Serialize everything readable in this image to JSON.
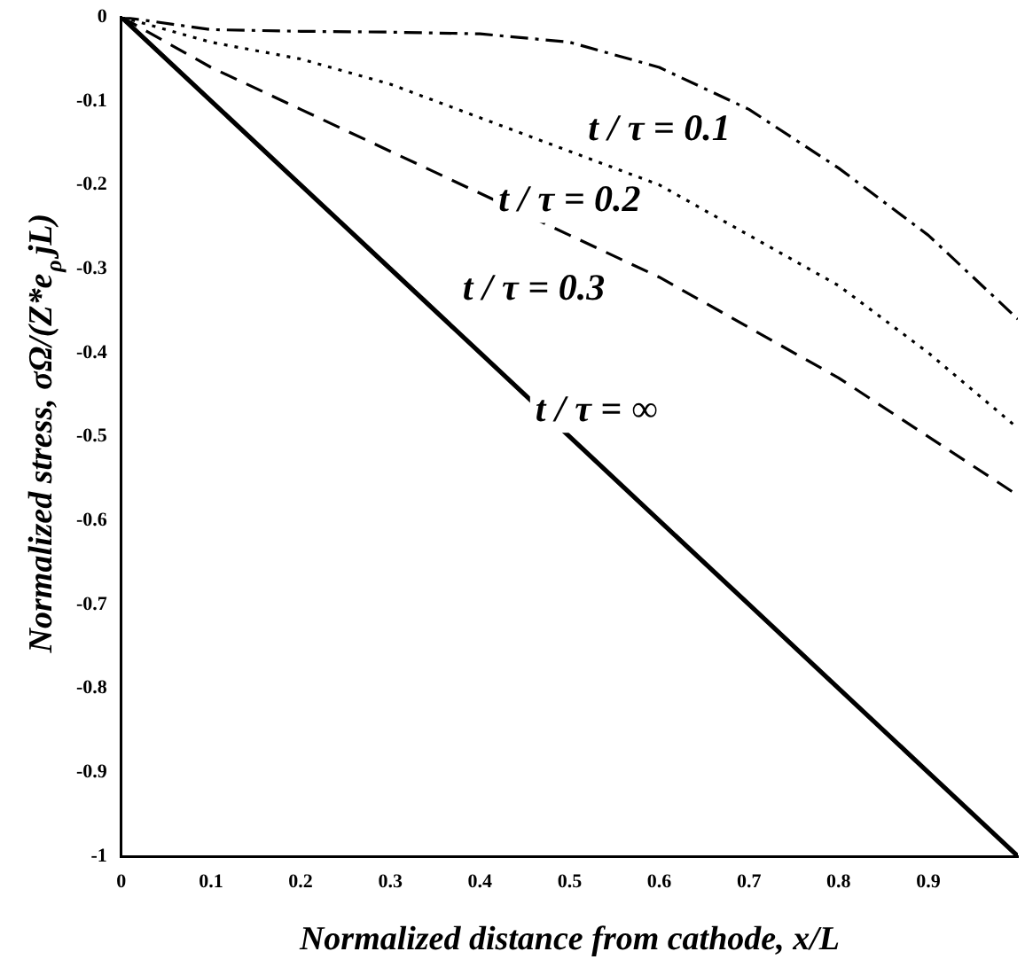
{
  "chart_data": {
    "type": "line",
    "xlabel": "Normalized distance from cathode, x/L",
    "ylabel": "Normalized stress, σΩ/(Z*e$_{ρ}$jL)",
    "x": [
      0,
      0.1,
      0.2,
      0.3,
      0.4,
      0.5,
      0.6,
      0.7,
      0.8,
      0.9,
      1.0
    ],
    "series": [
      {
        "name": "t / τ = 0.1",
        "color": "#000000",
        "line_style": "dashdot",
        "values": [
          0,
          -0.015,
          -0.017,
          -0.018,
          -0.02,
          -0.03,
          -0.06,
          -0.11,
          -0.18,
          -0.26,
          -0.36
        ]
      },
      {
        "name": "t / τ = 0.2",
        "color": "#000000",
        "line_style": "dotted",
        "values": [
          0,
          -0.03,
          -0.05,
          -0.08,
          -0.12,
          -0.16,
          -0.2,
          -0.26,
          -0.32,
          -0.4,
          -0.49
        ]
      },
      {
        "name": "t / τ = 0.3",
        "color": "#000000",
        "line_style": "dashed",
        "values": [
          0,
          -0.06,
          -0.11,
          -0.16,
          -0.21,
          -0.26,
          -0.31,
          -0.37,
          -0.43,
          -0.5,
          -0.57
        ]
      },
      {
        "name": "t / τ = ∞",
        "color": "#000000",
        "line_style": "solid",
        "values": [
          0,
          -0.1,
          -0.2,
          -0.3,
          -0.4,
          -0.5,
          -0.6,
          -0.7,
          -0.8,
          -0.9,
          -1.0
        ]
      }
    ],
    "xlim": [
      0,
      1
    ],
    "xticks": [
      0,
      0.1,
      0.2,
      0.3,
      0.4,
      0.5,
      0.6,
      0.7,
      0.8,
      0.9
    ],
    "ylim": [
      -1,
      0
    ],
    "yticks": [
      0,
      -0.1,
      -0.2,
      -0.3,
      -0.4,
      -0.5,
      -0.6,
      -0.7,
      -0.8,
      -0.9,
      -1
    ],
    "grid": false,
    "legend": false,
    "marker": "none"
  }
}
